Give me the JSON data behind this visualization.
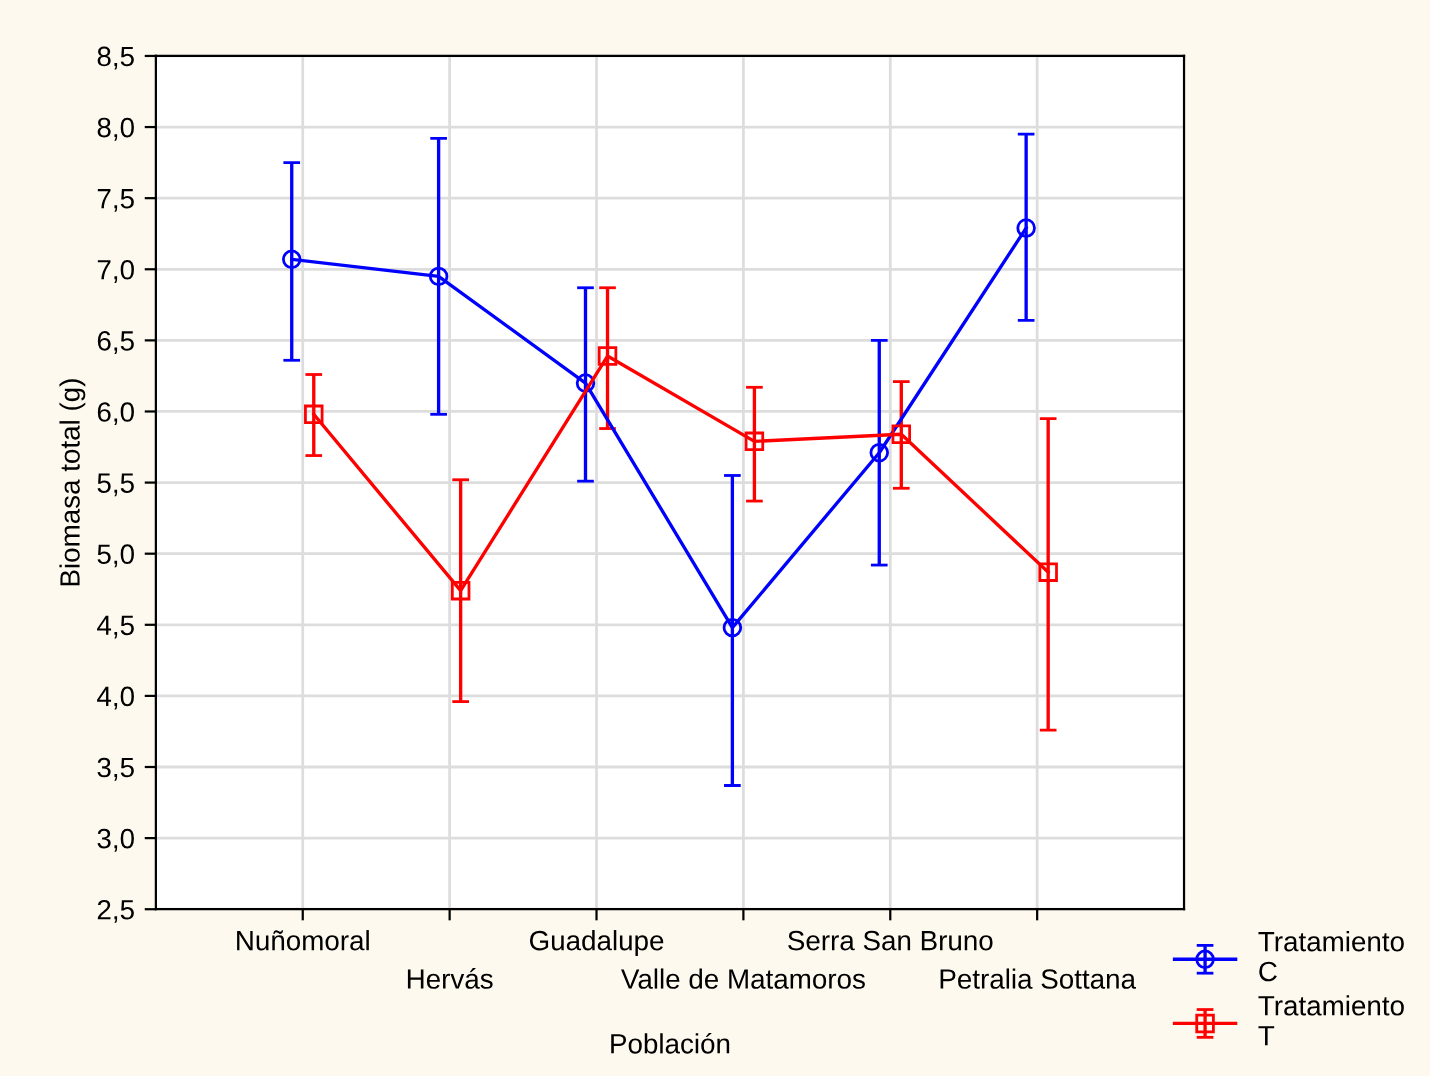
{
  "chart_data": {
    "type": "line",
    "xlabel": "Población",
    "ylabel": "Biomasa total (g)",
    "categories": [
      "Nuñomoral",
      "Hervás",
      "Guadalupe",
      "Valle de Matamoros",
      "Serra San Bruno",
      "Petralia Sottana"
    ],
    "series": [
      {
        "name": "Tratamiento C",
        "color": "#0000ff",
        "marker": "circle",
        "values": [
          7.07,
          6.95,
          6.2,
          4.48,
          5.71,
          7.29
        ],
        "errors": [
          [
            6.36,
            7.75
          ],
          [
            5.98,
            7.92
          ],
          [
            5.51,
            6.87
          ],
          [
            3.37,
            5.55
          ],
          [
            4.92,
            6.5
          ],
          [
            6.64,
            7.95
          ]
        ]
      },
      {
        "name": "Tratamiento T",
        "color": "#ff0000",
        "marker": "square",
        "values": [
          5.98,
          4.74,
          6.39,
          5.79,
          5.84,
          4.87
        ],
        "errors": [
          [
            5.69,
            6.26
          ],
          [
            3.96,
            5.52
          ],
          [
            5.88,
            6.87
          ],
          [
            5.37,
            6.17
          ],
          [
            5.46,
            6.21
          ],
          [
            3.76,
            5.95
          ]
        ]
      }
    ],
    "ylim": [
      2.5,
      8.5
    ],
    "yticks": [
      {
        "value": 2.5,
        "label": "2,5"
      },
      {
        "value": 3.0,
        "label": "3,0"
      },
      {
        "value": 3.5,
        "label": "3,5"
      },
      {
        "value": 4.0,
        "label": "4,0"
      },
      {
        "value": 4.5,
        "label": "4,5"
      },
      {
        "value": 5.0,
        "label": "5,0"
      },
      {
        "value": 5.5,
        "label": "5,5"
      },
      {
        "value": 6.0,
        "label": "6,0"
      },
      {
        "value": 6.5,
        "label": "6,5"
      },
      {
        "value": 7.0,
        "label": "7,0"
      },
      {
        "value": 7.5,
        "label": "7,5"
      },
      {
        "value": 8.0,
        "label": "8,0"
      },
      {
        "value": 8.5,
        "label": "8,5"
      }
    ],
    "grid": true,
    "legend": "bottom right",
    "line_style": "solid"
  }
}
